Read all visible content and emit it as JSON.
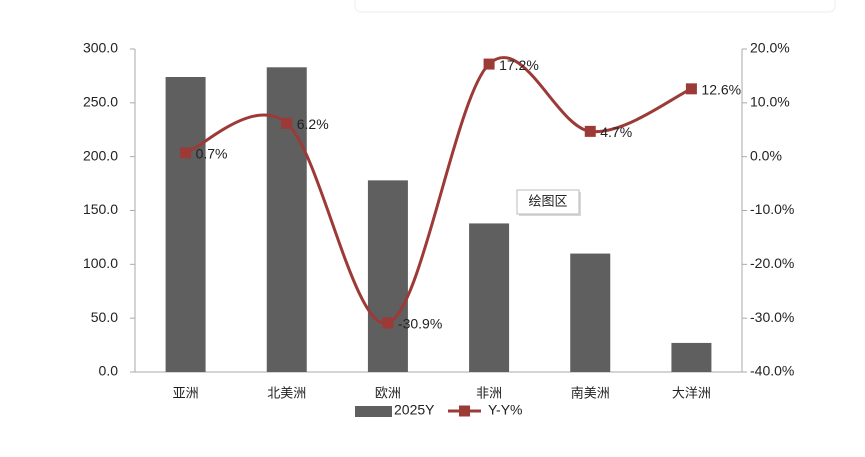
{
  "chart_data": {
    "type": "combo",
    "categories": [
      "亚洲",
      "北美洲",
      "欧洲",
      "非洲",
      "南美洲",
      "大洋洲"
    ],
    "series": [
      {
        "name": "2025Y",
        "type": "bar",
        "color": "#5f5f5f",
        "values": [
          274,
          283,
          178,
          138,
          110,
          27
        ]
      },
      {
        "name": "Y-Y%",
        "type": "line",
        "axis": "y2",
        "color": "#9b3a37",
        "values": [
          0.7,
          6.2,
          -30.9,
          17.2,
          4.7,
          12.6
        ],
        "value_labels": [
          "0.7%",
          "6.2%",
          "-30.9%",
          "17.2%",
          "4.7%",
          "12.6%"
        ]
      }
    ],
    "ylim": [
      0,
      300
    ],
    "yticks": [
      {
        "value": 0,
        "label": "0.0"
      },
      {
        "value": 50,
        "label": "50.0"
      },
      {
        "value": 100,
        "label": "100.0"
      },
      {
        "value": 150,
        "label": "150.0"
      },
      {
        "value": 200,
        "label": "200.0"
      },
      {
        "value": 250,
        "label": "250.0"
      },
      {
        "value": 300,
        "label": "300.0"
      }
    ],
    "y2lim": [
      -40,
      20
    ],
    "y2ticks": [
      {
        "value": -40,
        "label": "-40.0%"
      },
      {
        "value": -30,
        "label": "-30.0%"
      },
      {
        "value": -20,
        "label": "-20.0%"
      },
      {
        "value": -10,
        "label": "-10.0%"
      },
      {
        "value": 0,
        "label": "0.0%"
      },
      {
        "value": 10,
        "label": "10.0%"
      },
      {
        "value": 20,
        "label": "20.0%"
      }
    ],
    "annotation": "绘图区",
    "legend": "bottom"
  }
}
